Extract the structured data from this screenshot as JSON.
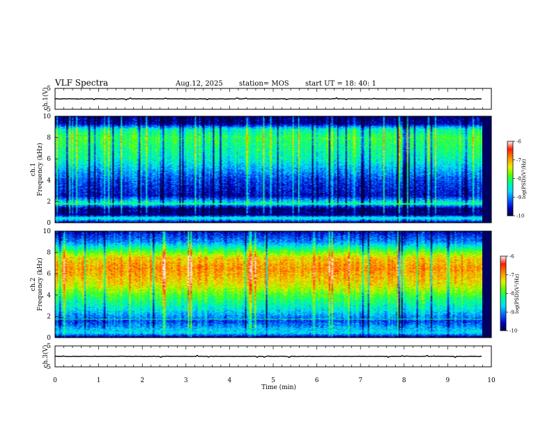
{
  "header": {
    "title": "VLF Spectra",
    "date": "Aug.12, 2025",
    "station": "station= MOS",
    "start": "start UT =   18: 40: 1"
  },
  "chart_data": [
    {
      "type": "line",
      "panel": "ch1-voltage",
      "ylabel": "ch.1(V)",
      "ylim": [
        -5,
        5
      ],
      "yticks": [
        "5",
        "-5"
      ],
      "xlim": [
        0,
        10
      ],
      "series": [
        {
          "name": "ch.1",
          "baseline": 0
        }
      ]
    },
    {
      "type": "heatmap",
      "panel": "ch1-spectrogram",
      "ylabel": "ch.1",
      "ylabel2": "Frequency (kHz)",
      "ylim": [
        0,
        10
      ],
      "yticks": [
        "0",
        "2",
        "4",
        "6",
        "8",
        "10"
      ],
      "xlim": [
        0,
        9.8
      ],
      "colorbar": {
        "label": "log(PSD)(V²/Hz)",
        "range": [
          -10,
          -6
        ],
        "ticks": [
          "-6",
          "-7",
          "-8",
          "-9",
          "-10"
        ]
      },
      "level_profile": {
        "freq_khz": [
          0,
          0.4,
          0.7,
          1.3,
          1.8,
          2.5,
          4,
          6,
          8,
          8.8,
          9.3,
          10
        ],
        "log_psd": [
          -9.8,
          -8.2,
          -9.8,
          -9.9,
          -8.4,
          -9.6,
          -9.3,
          -8.4,
          -8.0,
          -8.4,
          -9.7,
          -9.9
        ]
      }
    },
    {
      "type": "heatmap",
      "panel": "ch2-spectrogram",
      "ylabel": "ch.2",
      "ylabel2": "Frequency (kHz)",
      "ylim": [
        0,
        10
      ],
      "yticks": [
        "0",
        "2",
        "4",
        "6",
        "8",
        "10"
      ],
      "xlim": [
        0,
        9.8
      ],
      "colorbar": {
        "label": "log(PSD)(V²/Hz)",
        "range": [
          -10,
          -6
        ],
        "ticks": [
          "-6",
          "-7",
          "-8",
          "-9",
          "-10"
        ]
      },
      "level_profile": {
        "freq_khz": [
          0,
          0.4,
          0.8,
          1.5,
          2.5,
          4,
          5,
          6.5,
          7.5,
          8.2,
          9,
          10
        ],
        "log_psd": [
          -9.8,
          -8.6,
          -8.8,
          -9.3,
          -8.6,
          -7.9,
          -7.3,
          -6.9,
          -7.2,
          -8.0,
          -9.0,
          -9.6
        ]
      }
    },
    {
      "type": "line",
      "panel": "ch3-voltage",
      "ylabel": "ch.3(V)",
      "ylim": [
        -5,
        5
      ],
      "yticks": [
        "5",
        "-5"
      ],
      "xlim": [
        0,
        10
      ],
      "xlabel": "Time  (min)",
      "xticks": [
        "0",
        "1",
        "2",
        "3",
        "4",
        "5",
        "6",
        "7",
        "8",
        "9",
        "10"
      ],
      "series": [
        {
          "name": "ch.3",
          "baseline": 0
        }
      ]
    }
  ]
}
